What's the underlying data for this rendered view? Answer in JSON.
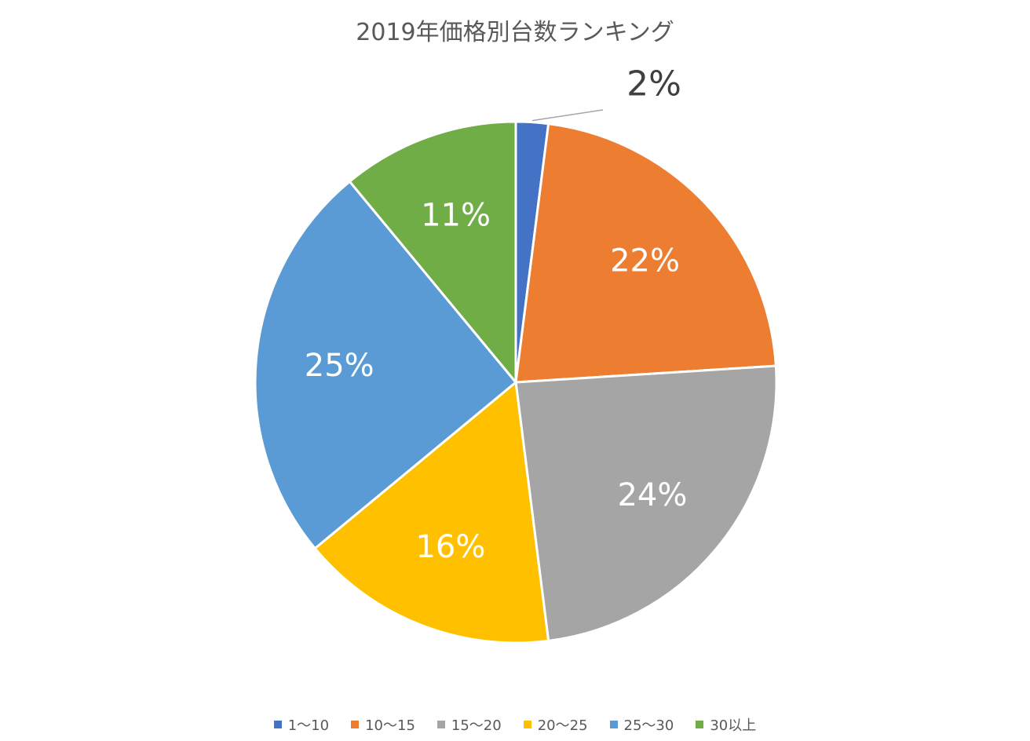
{
  "chart_data": {
    "type": "pie",
    "title": "2019年価格別台数ランキング",
    "categories": [
      "1〜10",
      "10〜15",
      "15〜20",
      "20〜25",
      "25〜30",
      "30以上"
    ],
    "values": [
      2,
      22,
      24,
      16,
      25,
      11
    ],
    "labels": [
      "2%",
      "22%",
      "24%",
      "16%",
      "25%",
      "11%"
    ],
    "colors": [
      "#4472C4",
      "#ED7D31",
      "#A5A5A5",
      "#FFC000",
      "#5B9BD5",
      "#70AD47"
    ],
    "legend_position": "bottom"
  }
}
